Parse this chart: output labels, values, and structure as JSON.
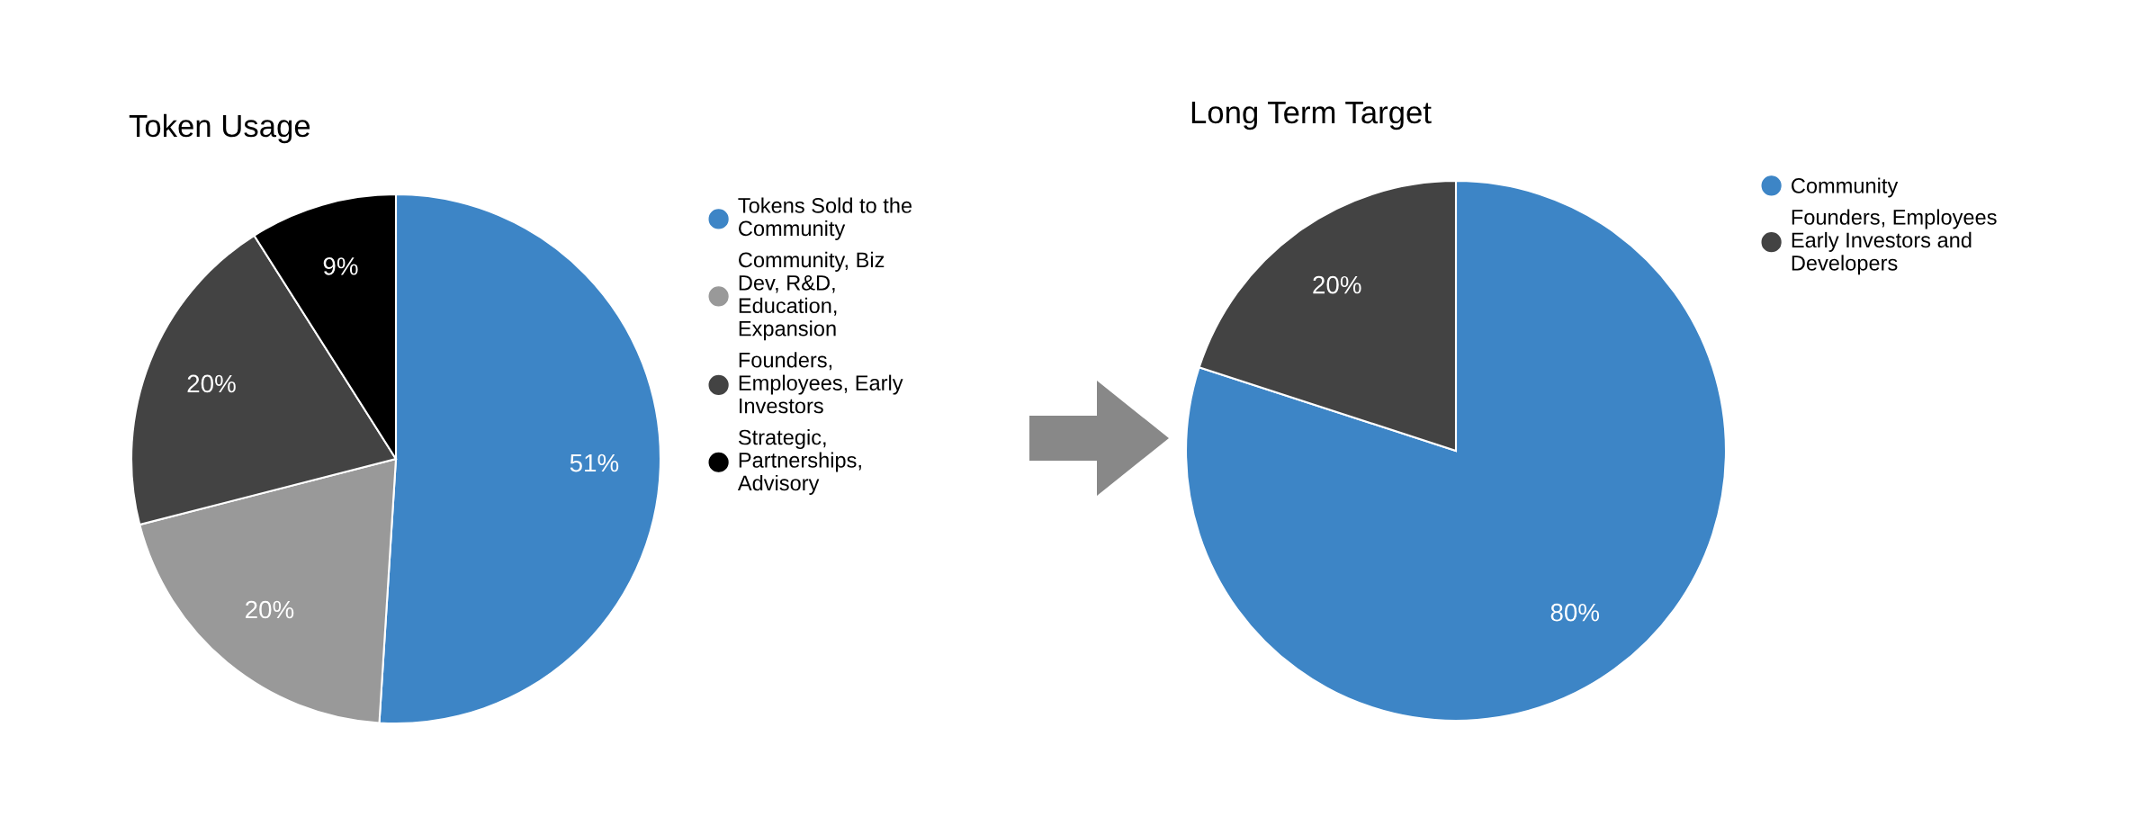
{
  "chart_data": [
    {
      "type": "pie",
      "title": "Token Usage",
      "categories": [
        "Tokens Sold to the Community",
        "Community, Biz Dev, R&D, Education, Expansion",
        "Founders, Employees, Early Investors",
        "Strategic, Partnerships, Advisory"
      ],
      "values": [
        51,
        20,
        20,
        9
      ],
      "value_labels": [
        "51%",
        "20%",
        "20%",
        "9%"
      ],
      "colors": [
        "#3d85c6",
        "#999999",
        "#434343",
        "#000000"
      ],
      "legend": "right"
    },
    {
      "type": "pie",
      "title": "Long Term Target",
      "categories": [
        "Community",
        "Founders, Employees Early Investors and Developers"
      ],
      "values": [
        80,
        20
      ],
      "value_labels": [
        "80%",
        "20%"
      ],
      "colors": [
        "#3d85c6",
        "#434343"
      ],
      "legend": "right"
    }
  ]
}
